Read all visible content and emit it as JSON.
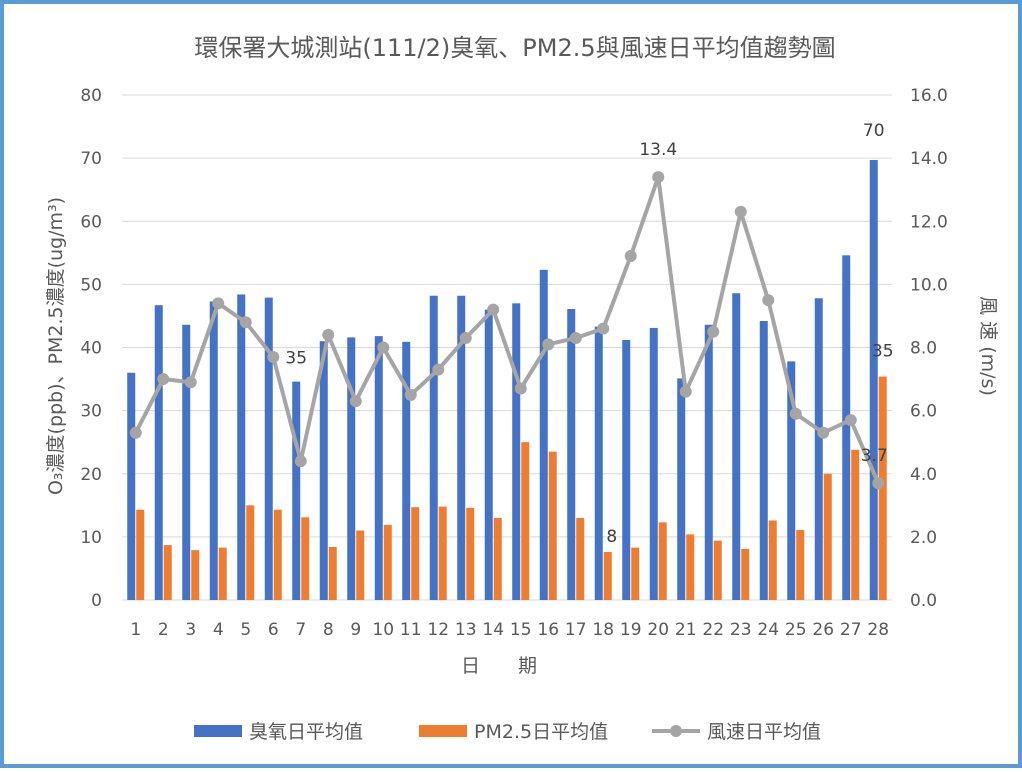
{
  "chart_data": {
    "type": "bar",
    "title": "環保署大城測站(111/2)臭氧、PM2.5與風速日平均值趨勢圖",
    "xlabel": "日　　期",
    "ylabel_left": "O₃濃度(ppb)、PM2.5濃度(ug/m³)",
    "ylabel_right": "風 速 (m/s)",
    "ylim_left": [
      0,
      80
    ],
    "ylim_right": [
      0,
      16
    ],
    "yticks_left": [
      "0",
      "10",
      "20",
      "30",
      "40",
      "50",
      "60",
      "70",
      "80"
    ],
    "yticks_right": [
      "0.0",
      "2.0",
      "4.0",
      "6.0",
      "8.0",
      "10.0",
      "12.0",
      "14.0",
      "16.0"
    ],
    "grid": true,
    "legend_position": "bottom",
    "categories": [
      "1",
      "2",
      "3",
      "4",
      "5",
      "6",
      "7",
      "8",
      "9",
      "10",
      "11",
      "12",
      "13",
      "14",
      "15",
      "16",
      "17",
      "18",
      "19",
      "20",
      "21",
      "22",
      "23",
      "24",
      "25",
      "26",
      "27",
      "28"
    ],
    "series": [
      {
        "name": "臭氧日平均值",
        "type": "bar",
        "axis": "left",
        "color": "#4472c4",
        "values": [
          36,
          46.7,
          43.6,
          47.3,
          48.4,
          47.9,
          34.6,
          41,
          41.6,
          41.8,
          40.9,
          48.2,
          48.2,
          46,
          47,
          52.3,
          46.1,
          43.3,
          41.2,
          43.1,
          35.1,
          43.6,
          48.6,
          44.2,
          37.8,
          47.8,
          54.6,
          69.7
        ]
      },
      {
        "name": "PM2.5日平均值",
        "type": "bar",
        "axis": "left",
        "color": "#ed7d31",
        "values": [
          14.3,
          8.7,
          7.9,
          8.3,
          15,
          14.3,
          13.1,
          8.4,
          11,
          11.9,
          14.7,
          14.8,
          14.6,
          13,
          25,
          23.5,
          13,
          7.6,
          8.3,
          12.3,
          10.4,
          9.4,
          8.1,
          12.6,
          11.1,
          20,
          23.8,
          35.4
        ]
      },
      {
        "name": "風速日平均值",
        "type": "line",
        "axis": "right",
        "color": "#a5a5a5",
        "values": [
          5.3,
          7,
          6.9,
          9.4,
          8.8,
          7.7,
          4.4,
          8.4,
          6.3,
          8,
          6.5,
          7.3,
          8.3,
          9.2,
          6.7,
          8.1,
          8.3,
          8.6,
          10.9,
          13.4,
          6.6,
          8.5,
          12.3,
          9.5,
          5.9,
          5.3,
          5.7,
          3.7
        ]
      }
    ],
    "annotations": [
      {
        "label": "35",
        "series": 0,
        "index": 6
      },
      {
        "label": "70",
        "series": 0,
        "index": 27
      },
      {
        "label": "8",
        "series": 1,
        "index": 17
      },
      {
        "label": "35",
        "series": 1,
        "index": 27
      },
      {
        "label": "13.4",
        "series": 2,
        "index": 19
      },
      {
        "label": "3.7",
        "series": 2,
        "index": 27
      }
    ]
  }
}
